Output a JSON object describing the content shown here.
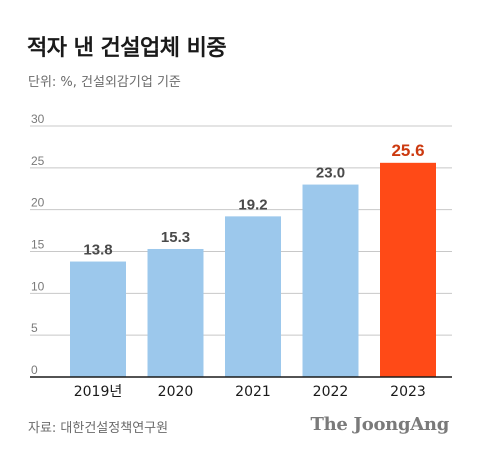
{
  "title": "적자 낸 건설업체 비중",
  "unit_note": "단위: %, 건설외감기업 기준",
  "source": "자료: 대한건설정책연구원",
  "brand": "The JoongAng",
  "colors": {
    "bar": "#9cc8ec",
    "highlight_bar": "#ff4a17",
    "highlight_label": "#cc3a10",
    "value_label": "#4a4a4a",
    "grid": "#c8c8c8",
    "axis": "#1a1a1a"
  },
  "chart_data": {
    "type": "bar",
    "categories": [
      "2019년",
      "2020",
      "2021",
      "2022",
      "2023"
    ],
    "values": [
      13.8,
      15.3,
      19.2,
      23.0,
      25.6
    ],
    "value_labels": [
      "13.8",
      "15.3",
      "19.2",
      "23.0",
      "25.6"
    ],
    "highlight_index": 4,
    "ylim": [
      0,
      30
    ],
    "yticks": [
      0,
      5,
      10,
      15,
      20,
      25,
      30
    ],
    "grid": true,
    "xlabel": "",
    "ylabel": "",
    "title": "적자 낸 건설업체 비중"
  }
}
